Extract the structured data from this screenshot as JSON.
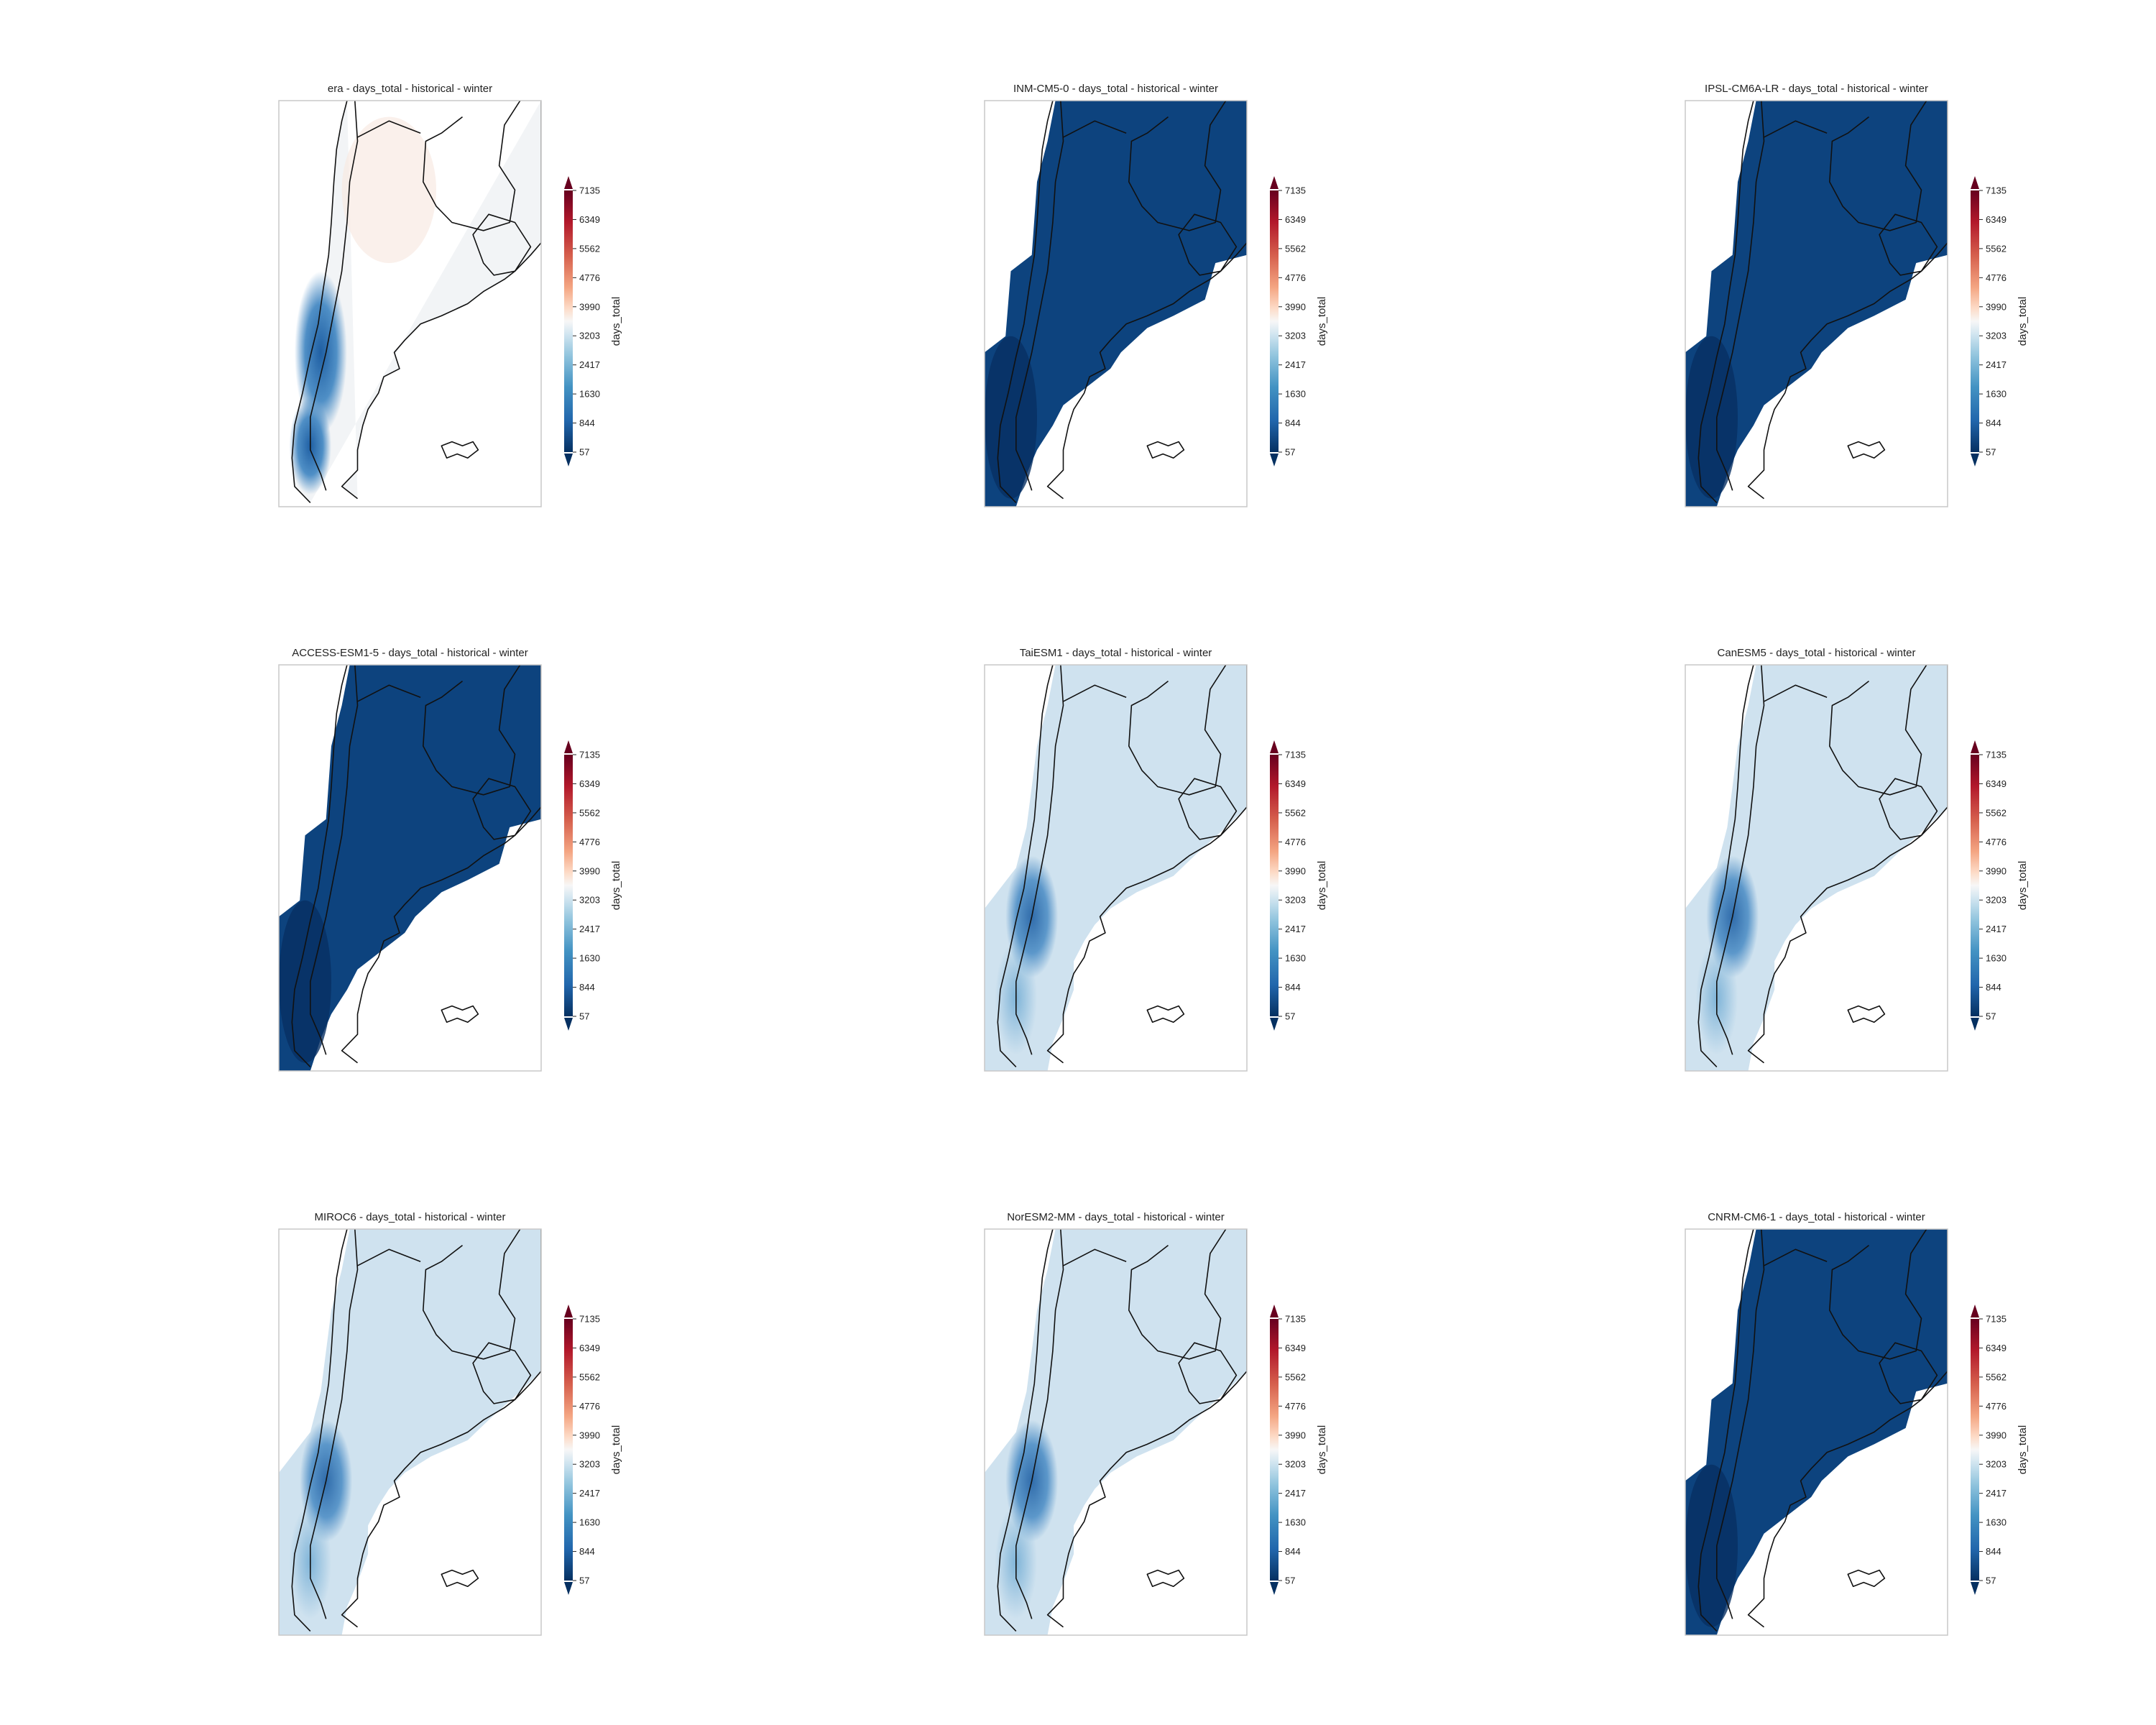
{
  "figure": {
    "panels": [
      {
        "title": "era - days_total - historical - winter",
        "style": "era"
      },
      {
        "title": "INM-CM5-0 - days_total - historical - winter",
        "style": "dark"
      },
      {
        "title": "IPSL-CM6A-LR - days_total - historical - winter",
        "style": "dark"
      },
      {
        "title": "ACCESS-ESM1-5 - days_total - historical - winter",
        "style": "dark"
      },
      {
        "title": "TaiESM1 - days_total - historical - winter",
        "style": "light"
      },
      {
        "title": "CanESM5 - days_total - historical - winter",
        "style": "light"
      },
      {
        "title": "MIROC6 - days_total - historical - winter",
        "style": "light"
      },
      {
        "title": "NorESM2-MM - days_total - historical - winter",
        "style": "light"
      },
      {
        "title": "CNRM-CM6-1 - days_total - historical - winter",
        "style": "dark"
      }
    ],
    "colorbar": {
      "label": "days_total",
      "ticks": [
        "57",
        "844",
        "1630",
        "2417",
        "3203",
        "3990",
        "4776",
        "5562",
        "6349",
        "7135"
      ],
      "colormap": "RdBu_r",
      "extend": "both"
    },
    "colors": {
      "dark": "#0d437e",
      "darkest": "#083063",
      "light": "#cfe2ef",
      "mid": "#7fb4d8",
      "deep": "#2f73b3",
      "era_base": "#f2f4f6",
      "warm": "#f8eae3"
    }
  }
}
